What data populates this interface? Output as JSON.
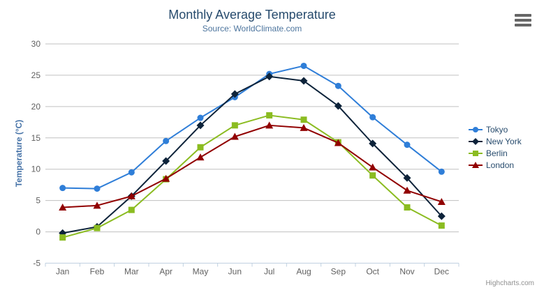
{
  "chart": {
    "title": "Monthly Average Temperature",
    "subtitle": "Source: WorldClimate.com",
    "credits": "Highcharts.com",
    "export_menu_icon": "hamburger-icon"
  },
  "chart_data": {
    "type": "line",
    "title": "Monthly Average Temperature",
    "subtitle": "Source: WorldClimate.com",
    "categories": [
      "Jan",
      "Feb",
      "Mar",
      "Apr",
      "May",
      "Jun",
      "Jul",
      "Aug",
      "Sep",
      "Oct",
      "Nov",
      "Dec"
    ],
    "xlabel": "",
    "ylabel": "Temperature (°C)",
    "ylim": [
      -5,
      30
    ],
    "ytick_interval": 5,
    "grid": "horizontal",
    "legend_position": "right",
    "series": [
      {
        "name": "Tokyo",
        "color": "#2f7ed8",
        "marker": "circle",
        "values": [
          7.0,
          6.9,
          9.5,
          14.5,
          18.2,
          21.5,
          25.2,
          26.5,
          23.3,
          18.3,
          13.9,
          9.6
        ]
      },
      {
        "name": "New York",
        "color": "#0d233a",
        "marker": "diamond",
        "values": [
          -0.2,
          0.8,
          5.7,
          11.3,
          17.0,
          22.0,
          24.8,
          24.1,
          20.1,
          14.1,
          8.6,
          2.5
        ]
      },
      {
        "name": "Berlin",
        "color": "#8bbc21",
        "marker": "square",
        "values": [
          -0.9,
          0.6,
          3.5,
          8.4,
          13.5,
          17.0,
          18.6,
          17.9,
          14.3,
          9.0,
          3.9,
          1.0
        ]
      },
      {
        "name": "London",
        "color": "#910000",
        "marker": "triangle",
        "values": [
          3.9,
          4.2,
          5.7,
          8.5,
          11.9,
          15.2,
          17.0,
          16.6,
          14.2,
          10.3,
          6.6,
          4.8
        ]
      }
    ],
    "axis_colors": {
      "grid": "#c0c0c0",
      "axis_line": "#c0d0e0",
      "labels": "#606060",
      "y_title": "#4572a7"
    }
  }
}
